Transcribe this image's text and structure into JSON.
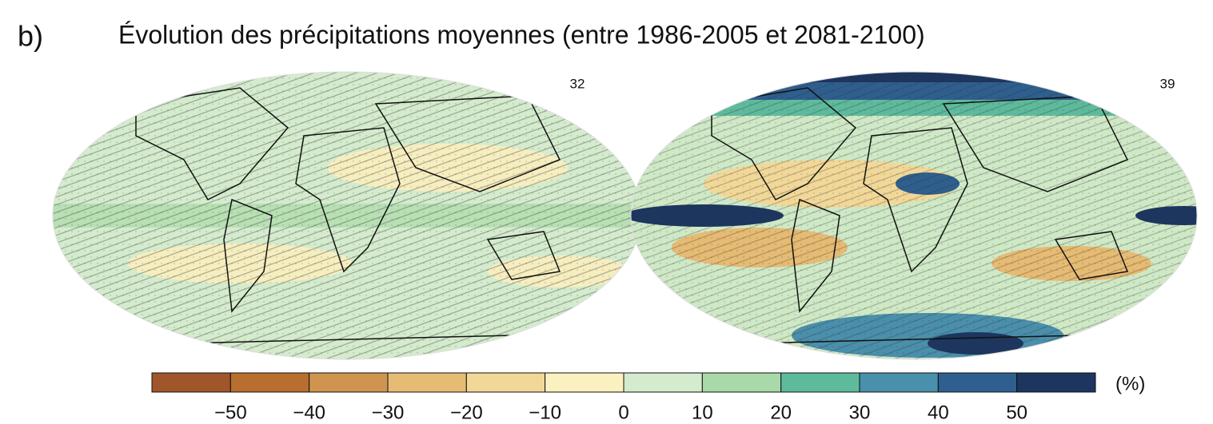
{
  "panel_label": "b)",
  "title": "Évolution des précipitations moyennes (entre 1986-2005 et 2081-2100)",
  "maps": [
    {
      "label": "32"
    },
    {
      "label": "39"
    }
  ],
  "colorbar": {
    "bins": [
      -60,
      -50,
      -40,
      -30,
      -20,
      -10,
      0,
      10,
      20,
      30,
      40,
      50,
      60
    ],
    "colors": [
      "#a0562a",
      "#b86e2e",
      "#cf9450",
      "#e6bb73",
      "#f2d898",
      "#fbf1c0",
      "#d4eccd",
      "#a9d9a8",
      "#5dbb9c",
      "#4a8fab",
      "#2e5f8f",
      "#1c3660"
    ],
    "ticks": [
      {
        "value": -50,
        "label": "−50"
      },
      {
        "value": -40,
        "label": "−40"
      },
      {
        "value": -30,
        "label": "−30"
      },
      {
        "value": -20,
        "label": "−20"
      },
      {
        "value": -10,
        "label": "−10"
      },
      0,
      10,
      20,
      30,
      40,
      50
    ],
    "unit": "(%)"
  }
}
